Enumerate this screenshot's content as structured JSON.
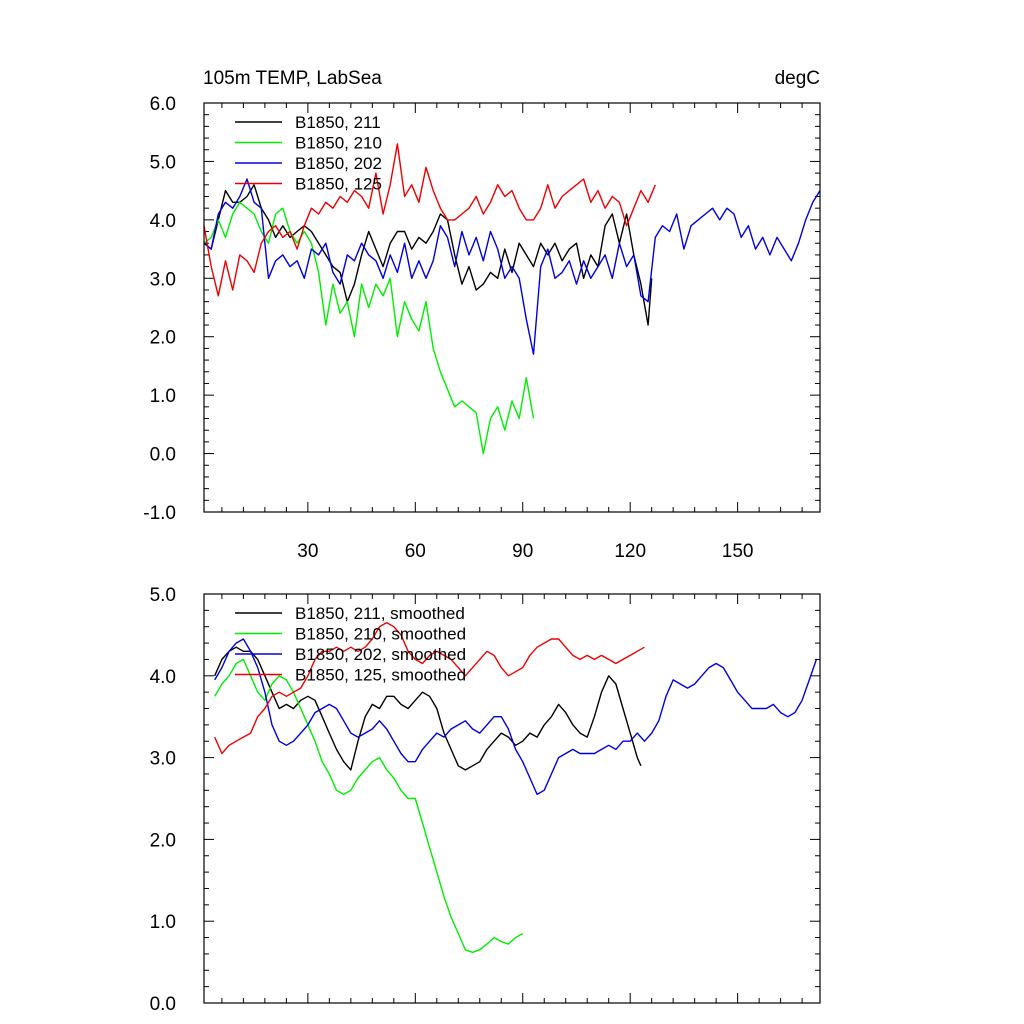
{
  "colors": {
    "black": "#000000",
    "green": "#00ee00",
    "blue": "#0000dd",
    "red": "#ee0000"
  },
  "chart_data": [
    {
      "type": "line",
      "title_left": "105m TEMP, LabSea",
      "title_right": "degC",
      "xlim": [
        1,
        173
      ],
      "ylim": [
        -1.0,
        6.0
      ],
      "yticks": [
        -1.0,
        0.0,
        1.0,
        2.0,
        3.0,
        4.0,
        5.0,
        6.0
      ],
      "ytick_labels": [
        "-1.0",
        "0.0",
        "1.0",
        "2.0",
        "3.0",
        "4.0",
        "5.0",
        "6.0"
      ],
      "xticks": [
        30,
        60,
        90,
        120,
        150
      ],
      "xtick_labels": [
        "30",
        "60",
        "90",
        "120",
        "150"
      ],
      "legend_position": "top-left",
      "series": [
        {
          "name": "B1850, 211",
          "color": "#000000",
          "x": [
            1,
            3,
            5,
            7,
            9,
            11,
            13,
            15,
            17,
            19,
            21,
            23,
            25,
            27,
            29,
            31,
            33,
            35,
            37,
            39,
            41,
            43,
            45,
            47,
            49,
            51,
            53,
            55,
            57,
            59,
            61,
            63,
            65,
            67,
            69,
            71,
            73,
            75,
            77,
            79,
            81,
            83,
            85,
            87,
            89,
            91,
            93,
            95,
            97,
            99,
            101,
            103,
            105,
            107,
            109,
            111,
            113,
            115,
            117,
            119,
            121,
            123,
            125,
            126
          ],
          "y": [
            3.6,
            3.5,
            4.0,
            4.5,
            4.3,
            4.3,
            4.4,
            4.6,
            4.2,
            4.0,
            3.7,
            3.9,
            3.7,
            3.8,
            3.9,
            3.8,
            3.6,
            3.4,
            3.2,
            3.1,
            2.6,
            2.9,
            3.4,
            3.8,
            3.5,
            3.2,
            3.6,
            3.8,
            3.8,
            3.5,
            3.7,
            3.6,
            3.8,
            4.1,
            4.0,
            3.4,
            2.9,
            3.2,
            2.8,
            2.9,
            3.1,
            3.0,
            3.5,
            3.1,
            3.6,
            3.4,
            3.2,
            3.6,
            3.4,
            3.6,
            3.3,
            3.5,
            3.6,
            3.0,
            3.4,
            3.2,
            3.9,
            4.1,
            3.6,
            4.1,
            3.4,
            2.9,
            2.2,
            3.0
          ]
        },
        {
          "name": "B1850, 210",
          "color": "#00ee00",
          "x": [
            1,
            3,
            5,
            7,
            9,
            11,
            13,
            15,
            17,
            19,
            21,
            23,
            25,
            27,
            29,
            31,
            33,
            35,
            37,
            39,
            41,
            43,
            45,
            47,
            49,
            51,
            53,
            55,
            57,
            59,
            61,
            63,
            65,
            67,
            69,
            71,
            73,
            75,
            77,
            79,
            81,
            83,
            85,
            87,
            89,
            91,
            93
          ],
          "y": [
            3.6,
            3.7,
            4.0,
            3.7,
            4.1,
            4.3,
            4.2,
            4.1,
            3.8,
            3.6,
            4.1,
            4.2,
            3.8,
            3.6,
            3.8,
            3.6,
            3.1,
            2.2,
            2.9,
            2.4,
            2.6,
            2.0,
            2.9,
            2.5,
            2.9,
            2.7,
            3.0,
            2.0,
            2.6,
            2.3,
            2.1,
            2.6,
            1.8,
            1.4,
            1.1,
            0.8,
            0.9,
            0.8,
            0.7,
            0.0,
            0.6,
            0.8,
            0.4,
            0.9,
            0.6,
            1.3,
            0.6
          ]
        },
        {
          "name": "B1850, 202",
          "color": "#0000dd",
          "x": [
            1,
            3,
            5,
            7,
            9,
            11,
            13,
            15,
            17,
            19,
            21,
            23,
            25,
            27,
            29,
            31,
            33,
            35,
            37,
            39,
            41,
            43,
            45,
            47,
            49,
            51,
            53,
            55,
            57,
            59,
            61,
            63,
            65,
            67,
            69,
            71,
            73,
            75,
            77,
            79,
            81,
            83,
            85,
            87,
            89,
            91,
            93,
            95,
            97,
            99,
            101,
            103,
            105,
            107,
            109,
            111,
            113,
            115,
            117,
            119,
            121,
            123,
            125,
            127,
            129,
            131,
            133,
            135,
            137,
            139,
            141,
            143,
            145,
            147,
            149,
            151,
            153,
            155,
            157,
            159,
            161,
            163,
            165,
            167,
            169,
            171,
            173
          ],
          "y": [
            3.6,
            3.5,
            4.1,
            4.3,
            4.2,
            4.4,
            4.7,
            4.3,
            4.2,
            3.0,
            3.3,
            3.4,
            3.2,
            3.3,
            3.0,
            3.5,
            3.4,
            3.6,
            3.1,
            2.9,
            3.4,
            3.3,
            3.6,
            3.4,
            3.3,
            3.0,
            3.4,
            3.1,
            3.6,
            3.0,
            3.3,
            3.0,
            3.3,
            3.9,
            3.7,
            3.2,
            3.8,
            3.4,
            3.7,
            3.3,
            3.8,
            3.5,
            3.0,
            3.2,
            3.0,
            2.3,
            1.7,
            3.2,
            3.5,
            3.0,
            3.1,
            3.3,
            2.9,
            3.3,
            3.0,
            3.2,
            3.4,
            3.0,
            3.6,
            3.2,
            3.4,
            2.7,
            2.6,
            3.7,
            3.9,
            3.8,
            4.1,
            3.5,
            3.9,
            4.0,
            4.1,
            4.2,
            4.0,
            4.2,
            4.1,
            3.7,
            3.9,
            3.5,
            3.7,
            3.4,
            3.7,
            3.5,
            3.3,
            3.6,
            4.0,
            4.3,
            4.5
          ]
        },
        {
          "name": "B1850, 125",
          "color": "#ee0000",
          "x": [
            1,
            3,
            5,
            7,
            9,
            11,
            13,
            15,
            17,
            19,
            21,
            23,
            25,
            27,
            29,
            31,
            33,
            35,
            37,
            39,
            41,
            43,
            45,
            47,
            49,
            51,
            53,
            55,
            57,
            59,
            61,
            63,
            65,
            67,
            69,
            71,
            73,
            75,
            77,
            79,
            81,
            83,
            85,
            87,
            89,
            91,
            93,
            95,
            97,
            99,
            101,
            103,
            105,
            107,
            109,
            111,
            113,
            115,
            117,
            119,
            121,
            123,
            125,
            127
          ],
          "y": [
            3.9,
            3.2,
            2.7,
            3.3,
            2.8,
            3.4,
            3.3,
            3.1,
            3.6,
            3.8,
            3.9,
            3.7,
            3.8,
            3.5,
            3.9,
            4.2,
            4.1,
            4.3,
            4.2,
            4.4,
            4.3,
            4.5,
            4.4,
            4.2,
            4.8,
            4.1,
            4.6,
            5.3,
            4.4,
            4.6,
            4.3,
            4.9,
            4.5,
            4.2,
            4.0,
            4.0,
            4.1,
            4.2,
            4.4,
            4.1,
            4.3,
            4.6,
            4.4,
            4.5,
            4.2,
            4.0,
            4.0,
            4.2,
            4.6,
            4.2,
            4.4,
            4.5,
            4.6,
            4.7,
            4.3,
            4.5,
            4.2,
            4.4,
            4.3,
            3.9,
            4.2,
            4.5,
            4.3,
            4.6
          ]
        }
      ]
    },
    {
      "type": "line",
      "xlim": [
        1,
        173
      ],
      "ylim": [
        0.0,
        5.0
      ],
      "yticks": [
        0.0,
        1.0,
        2.0,
        3.0,
        4.0,
        5.0
      ],
      "ytick_labels": [
        "0.0",
        "1.0",
        "2.0",
        "3.0",
        "4.0",
        "5.0"
      ],
      "xticks": [
        30,
        60,
        90,
        120,
        150
      ],
      "xtick_labels": [],
      "legend_position": "top-left",
      "series": [
        {
          "name": "B1850, 211, smoothed",
          "color": "#000000",
          "x": [
            4,
            6,
            8,
            10,
            12,
            14,
            16,
            18,
            20,
            22,
            24,
            26,
            28,
            30,
            32,
            34,
            36,
            38,
            40,
            42,
            44,
            46,
            48,
            50,
            52,
            54,
            56,
            58,
            60,
            62,
            64,
            66,
            68,
            70,
            72,
            74,
            76,
            78,
            80,
            82,
            84,
            86,
            88,
            90,
            92,
            94,
            96,
            98,
            100,
            102,
            104,
            106,
            108,
            110,
            112,
            114,
            116,
            118,
            120,
            122,
            123
          ],
          "y": [
            4.0,
            4.2,
            4.3,
            4.35,
            4.3,
            4.3,
            4.2,
            4.0,
            3.8,
            3.6,
            3.65,
            3.6,
            3.7,
            3.75,
            3.7,
            3.5,
            3.3,
            3.1,
            2.95,
            2.85,
            3.2,
            3.5,
            3.65,
            3.6,
            3.75,
            3.75,
            3.65,
            3.6,
            3.7,
            3.8,
            3.75,
            3.6,
            3.3,
            3.1,
            2.9,
            2.85,
            2.9,
            2.95,
            3.1,
            3.2,
            3.3,
            3.25,
            3.15,
            3.2,
            3.3,
            3.25,
            3.4,
            3.5,
            3.65,
            3.55,
            3.4,
            3.3,
            3.25,
            3.5,
            3.8,
            4.0,
            3.9,
            3.6,
            3.3,
            3.0,
            2.9
          ]
        },
        {
          "name": "B1850, 210, smoothed",
          "color": "#00ee00",
          "x": [
            4,
            6,
            8,
            10,
            12,
            14,
            16,
            18,
            20,
            22,
            24,
            26,
            28,
            30,
            32,
            34,
            36,
            38,
            40,
            42,
            44,
            46,
            48,
            50,
            52,
            54,
            56,
            58,
            60,
            62,
            64,
            66,
            68,
            70,
            72,
            74,
            76,
            78,
            80,
            82,
            84,
            86,
            88,
            90
          ],
          "y": [
            3.75,
            3.9,
            4.0,
            4.15,
            4.2,
            4.0,
            3.8,
            3.7,
            3.9,
            4.0,
            3.95,
            3.8,
            3.6,
            3.4,
            3.2,
            2.95,
            2.8,
            2.6,
            2.55,
            2.6,
            2.75,
            2.85,
            2.95,
            3.0,
            2.85,
            2.75,
            2.6,
            2.5,
            2.5,
            2.2,
            1.9,
            1.6,
            1.3,
            1.05,
            0.85,
            0.65,
            0.62,
            0.65,
            0.72,
            0.8,
            0.75,
            0.72,
            0.8,
            0.85
          ]
        },
        {
          "name": "B1850, 202, smoothed",
          "color": "#0000dd",
          "x": [
            4,
            6,
            8,
            10,
            12,
            14,
            16,
            18,
            20,
            22,
            24,
            26,
            28,
            30,
            32,
            34,
            36,
            38,
            40,
            42,
            44,
            46,
            48,
            50,
            52,
            54,
            56,
            58,
            60,
            62,
            64,
            66,
            68,
            70,
            72,
            74,
            76,
            78,
            80,
            82,
            84,
            86,
            88,
            90,
            92,
            94,
            96,
            98,
            100,
            102,
            104,
            106,
            108,
            110,
            112,
            114,
            116,
            118,
            120,
            122,
            124,
            126,
            128,
            130,
            132,
            134,
            136,
            138,
            140,
            142,
            144,
            146,
            148,
            150,
            152,
            154,
            156,
            158,
            160,
            162,
            164,
            166,
            168,
            170,
            172
          ],
          "y": [
            3.95,
            4.1,
            4.3,
            4.4,
            4.45,
            4.3,
            4.1,
            3.8,
            3.4,
            3.2,
            3.15,
            3.2,
            3.3,
            3.4,
            3.55,
            3.6,
            3.65,
            3.6,
            3.45,
            3.3,
            3.25,
            3.3,
            3.35,
            3.45,
            3.35,
            3.2,
            3.05,
            2.95,
            2.95,
            3.1,
            3.2,
            3.3,
            3.25,
            3.35,
            3.4,
            3.45,
            3.35,
            3.3,
            3.4,
            3.5,
            3.5,
            3.35,
            3.1,
            2.95,
            2.75,
            2.55,
            2.6,
            2.8,
            3.0,
            3.05,
            3.1,
            3.05,
            3.05,
            3.05,
            3.1,
            3.15,
            3.1,
            3.2,
            3.2,
            3.3,
            3.2,
            3.3,
            3.45,
            3.75,
            3.95,
            3.9,
            3.85,
            3.9,
            4.0,
            4.1,
            4.15,
            4.1,
            3.95,
            3.8,
            3.7,
            3.6,
            3.6,
            3.6,
            3.65,
            3.55,
            3.5,
            3.55,
            3.7,
            3.95,
            4.2
          ]
        },
        {
          "name": "B1850, 125, smoothed",
          "color": "#ee0000",
          "x": [
            4,
            6,
            8,
            10,
            12,
            14,
            16,
            18,
            20,
            22,
            24,
            26,
            28,
            30,
            32,
            34,
            36,
            38,
            40,
            42,
            44,
            46,
            48,
            50,
            52,
            54,
            56,
            58,
            60,
            62,
            64,
            66,
            68,
            70,
            72,
            74,
            76,
            78,
            80,
            82,
            84,
            86,
            88,
            90,
            92,
            94,
            96,
            98,
            100,
            102,
            104,
            106,
            108,
            110,
            112,
            114,
            116,
            118,
            120,
            122,
            124
          ],
          "y": [
            3.25,
            3.05,
            3.15,
            3.2,
            3.25,
            3.3,
            3.5,
            3.6,
            3.75,
            3.8,
            3.75,
            3.8,
            3.85,
            4.0,
            4.2,
            4.3,
            4.3,
            4.35,
            4.3,
            4.35,
            4.3,
            4.35,
            4.45,
            4.6,
            4.65,
            4.6,
            4.5,
            4.3,
            4.2,
            4.15,
            4.25,
            4.3,
            4.25,
            4.2,
            4.1,
            4.0,
            4.1,
            4.2,
            4.3,
            4.25,
            4.1,
            4.0,
            4.05,
            4.1,
            4.25,
            4.35,
            4.4,
            4.45,
            4.45,
            4.35,
            4.25,
            4.2,
            4.25,
            4.2,
            4.25,
            4.2,
            4.15,
            4.2,
            4.25,
            4.3,
            4.35
          ]
        }
      ]
    }
  ]
}
